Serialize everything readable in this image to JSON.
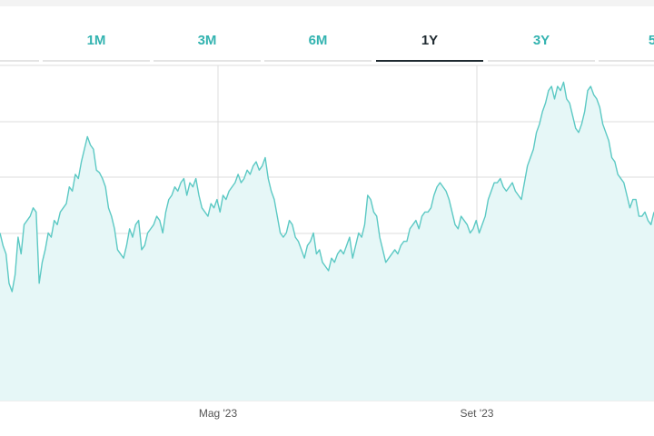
{
  "tabs": [
    {
      "label": "1M",
      "active": false
    },
    {
      "label": "3M",
      "active": false
    },
    {
      "label": "6M",
      "active": false
    },
    {
      "label": "1Y",
      "active": true
    },
    {
      "label": "3Y",
      "active": false
    },
    {
      "label": "5",
      "active": false
    }
  ],
  "colors": {
    "accent": "#33b3b0",
    "line": "#5cc9c4",
    "fill": "#e6f7f7",
    "grid": "#dcdcdc",
    "active_tab": "#1f2a30"
  },
  "chart_data": {
    "type": "area",
    "title": "",
    "xlabel": "",
    "ylabel": "",
    "x_ticks": [
      "Mag '23",
      "Set '23"
    ],
    "grid": true,
    "series": [
      {
        "values": [
          200,
          185,
          175,
          140,
          130,
          150,
          195,
          175,
          210,
          215,
          220,
          230,
          225,
          140,
          165,
          180,
          200,
          195,
          215,
          210,
          225,
          230,
          235,
          255,
          250,
          270,
          265,
          285,
          300,
          315,
          305,
          300,
          275,
          272,
          265,
          255,
          230,
          220,
          205,
          180,
          175,
          170,
          185,
          205,
          195,
          210,
          215,
          180,
          185,
          200,
          205,
          210,
          220,
          215,
          200,
          225,
          240,
          245,
          255,
          250,
          260,
          265,
          245,
          260,
          255,
          265,
          245,
          230,
          225,
          220,
          235,
          230,
          240,
          225,
          245,
          240,
          250,
          255,
          260,
          270,
          260,
          265,
          275,
          270,
          280,
          285,
          275,
          280,
          290,
          265,
          250,
          240,
          220,
          200,
          195,
          200,
          215,
          210,
          195,
          190,
          180,
          170,
          185,
          190,
          200,
          175,
          180,
          165,
          160,
          155,
          170,
          165,
          175,
          180,
          175,
          185,
          195,
          170,
          185,
          200,
          195,
          210,
          245,
          240,
          225,
          220,
          195,
          180,
          165,
          170,
          175,
          180,
          175,
          185,
          190,
          190,
          205,
          210,
          215,
          205,
          220,
          225,
          225,
          230,
          245,
          255,
          260,
          255,
          250,
          240,
          225,
          210,
          205,
          220,
          215,
          210,
          200,
          205,
          215,
          200,
          210,
          220,
          240,
          250,
          260,
          260,
          265,
          255,
          250,
          255,
          260,
          250,
          245,
          240,
          260,
          280,
          290,
          300,
          320,
          330,
          345,
          355,
          370,
          375,
          360,
          375,
          370,
          380,
          360,
          355,
          340,
          325,
          320,
          330,
          345,
          370,
          375,
          365,
          360,
          350,
          330,
          320,
          310,
          290,
          285,
          270,
          265,
          260,
          245,
          230,
          240,
          240,
          220,
          220,
          225,
          215,
          210,
          225
        ]
      }
    ]
  }
}
